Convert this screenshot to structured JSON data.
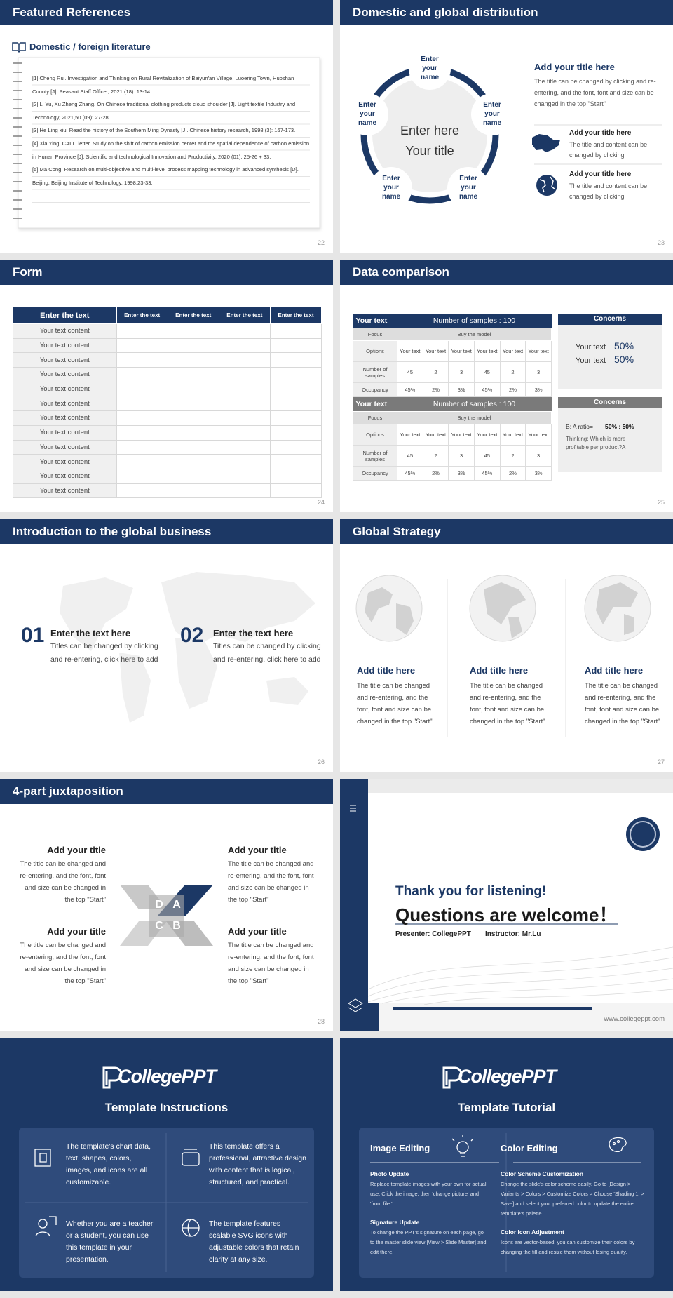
{
  "slides": [
    {
      "title": "Featured References",
      "subtitle": "Domestic / foreign literature",
      "references": [
        "[1] Cheng Rui. Investigation and Thinking on Rural Revitalization of Baiyun'an Village, Luoering Town, Huoshan County [J]. Peasant Staff Officer, 2021 (18): 13-14.",
        "[2] Li Yu, Xu Zheng Zhang. On Chinese traditional clothing products cloud shoulder [J]. Light textile Industry and Technology, 2021,50 (09): 27-28.",
        "[3] He Ling xiu. Read the history of the Southern Ming Dynasty [J]. Chinese history research, 1998 (3): 167-173.",
        "[4] Xia Ying, CAI Li letter. Study on the shift of carbon emission center and the spatial dependence of carbon emission in Hunan Province [J]. Scientific and technological Innovation and Productivity, 2020 (01): 25-26 + 33.",
        "[5] Ma Cong. Research on multi-objective and multi-level process mapping technology in advanced synthesis [D]. Beijing: Beijing Institute of Technology, 1998:23-33."
      ],
      "page_number": "22"
    },
    {
      "title": "Domestic and global distribution",
      "center": [
        "Enter here",
        "Your title"
      ],
      "nodes": [
        "Enter your name",
        "Enter your name",
        "Enter your name",
        "Enter your name",
        "Enter your name"
      ],
      "side_title": "Add your title here",
      "side_text": "The title can be changed by clicking and re-entering, and the font, font and size can be changed in the top \"Start\"",
      "items": [
        {
          "title": "Add your title here",
          "text": "The title and content can be changed by clicking"
        },
        {
          "title": "Add your title here",
          "text": "The title and content can be changed by clicking"
        }
      ],
      "page_number": "23"
    },
    {
      "title": "Form",
      "columns": [
        "Enter the text",
        "Enter the text",
        "Enter the text",
        "Enter the text",
        "Enter the text"
      ],
      "rows": [
        "Your text content",
        "Your text content",
        "Your text content",
        "Your text content",
        "Your text content",
        "Your text content",
        "Your text content",
        "Your text content",
        "Your text content",
        "Your text content",
        "Your text content",
        "Your text content"
      ],
      "page_number": "24"
    },
    {
      "title": "Data comparison",
      "tables": [
        {
          "label": "Your text",
          "samples": "Number of samples : 100",
          "focus": "Focus",
          "model": "Buy the model",
          "options_label": "Options",
          "options": [
            "Your text",
            "Your text",
            "Your text",
            "Your text",
            "Your text",
            "Your text"
          ],
          "count_label": "Number of samples",
          "counts": [
            45,
            2,
            3,
            45,
            2,
            3
          ],
          "share_label": "Occupancy",
          "shares": [
            "45%",
            "2%",
            "3%",
            "45%",
            "2%",
            "3%"
          ]
        },
        {
          "label": "Your text",
          "samples": "Number of samples : 100",
          "focus": "Focus",
          "model": "Buy the model",
          "options_label": "Options",
          "options": [
            "Your text",
            "Your text",
            "Your text",
            "Your text",
            "Your text",
            "Your text"
          ],
          "count_label": "Number of samples",
          "counts": [
            45,
            2,
            3,
            45,
            2,
            3
          ],
          "share_label": "Occupancy",
          "shares": [
            "45%",
            "2%",
            "3%",
            "45%",
            "2%",
            "3%"
          ]
        }
      ],
      "notes": [
        {
          "heading": "Concerns",
          "lines": [
            {
              "label": "Your text",
              "value": "50%"
            },
            {
              "label": "Your text",
              "value": "50%"
            }
          ]
        },
        {
          "heading": "Concerns",
          "ratio_label": "B: A ratio=",
          "ratio": "50% : 50%",
          "question": "Thinking: Which is more profitable per product?A"
        }
      ],
      "page_number": "25"
    },
    {
      "title": "Introduction to the global business",
      "items": [
        {
          "number": "01",
          "title": "Enter the text here",
          "text": "Titles can be changed by clicking and re-entering, click here to add"
        },
        {
          "number": "02",
          "title": "Enter the text here",
          "text": "Titles can be changed by clicking and re-entering, click here to add"
        }
      ],
      "page_number": "26"
    },
    {
      "title": "Global Strategy",
      "columns": [
        {
          "title": "Add title here",
          "text": "The title can be changed and re-entering, and the font, font and size can be changed in the top \"Start\""
        },
        {
          "title": "Add title here",
          "text": "The title can be changed and re-entering, and the font, font and size can be changed in the top \"Start\""
        },
        {
          "title": "Add title here",
          "text": "The title can be changed and re-entering, and the font, font and size can be changed in the top \"Start\""
        }
      ],
      "page_number": "27"
    },
    {
      "title": "4-part juxtaposition",
      "items": [
        {
          "title": "Add your title",
          "text": "The title can be changed and re-entering, and the font, font and size can be changed in the top \"Start\""
        },
        {
          "title": "Add your title",
          "text": "The title can be changed and re-entering, and the font, font and size can be changed in the top \"Start\""
        },
        {
          "title": "Add your title",
          "text": "The title can be changed and re-entering, and the font, font and size can be changed in the top \"Start\""
        },
        {
          "title": "Add your title",
          "text": "The title can be changed and re-entering, and the font, font and size can be changed in the top \"Start\""
        }
      ],
      "letters": [
        "D",
        "A",
        "C",
        "B"
      ],
      "page_number": "28"
    },
    {
      "greeting": "Thank you for listening!",
      "headline": "Questions are welcome！",
      "presenter": "Presenter: CollegePPT",
      "instructor": "Instructor: Mr.Lu",
      "website": "www.collegeppt.com"
    },
    {
      "logo": "CollegePPT",
      "title": "Template Instructions",
      "items": [
        "The template's chart data, text, shapes, colors, images, and icons are all customizable.",
        "This template offers a professional, attractive design with content that is logical, structured, and practical.",
        "Whether you are a teacher or a student, you can use this template in your presentation.",
        "The template features scalable SVG icons with adjustable colors that retain clarity at any size."
      ]
    },
    {
      "logo": "CollegePPT",
      "title": "Template Tutorial",
      "sections": [
        {
          "heading": "Image Editing",
          "items": [
            {
              "title": "Photo Update",
              "text": "Replace template images with your own for actual use. Click the image, then 'change picture' and 'from file.'"
            },
            {
              "title": "Signature Update",
              "text": "To change the PPT's signature on each page, go to the master slide view [View > Slide Master] and edit there."
            }
          ]
        },
        {
          "heading": "Color Editing",
          "items": [
            {
              "title": "Color Scheme Customization",
              "text": "Change the slide's color scheme easily. Go to [Design > Variants > Colors > Customize Colors > Choose 'Shading 1' > Save] and select your preferred color to update the entire template's palette."
            },
            {
              "title": "Color Icon Adjustment",
              "text": "Icons are vector-based; you can customize their colors by changing the fill and resize them without losing quality."
            }
          ]
        }
      ]
    }
  ]
}
